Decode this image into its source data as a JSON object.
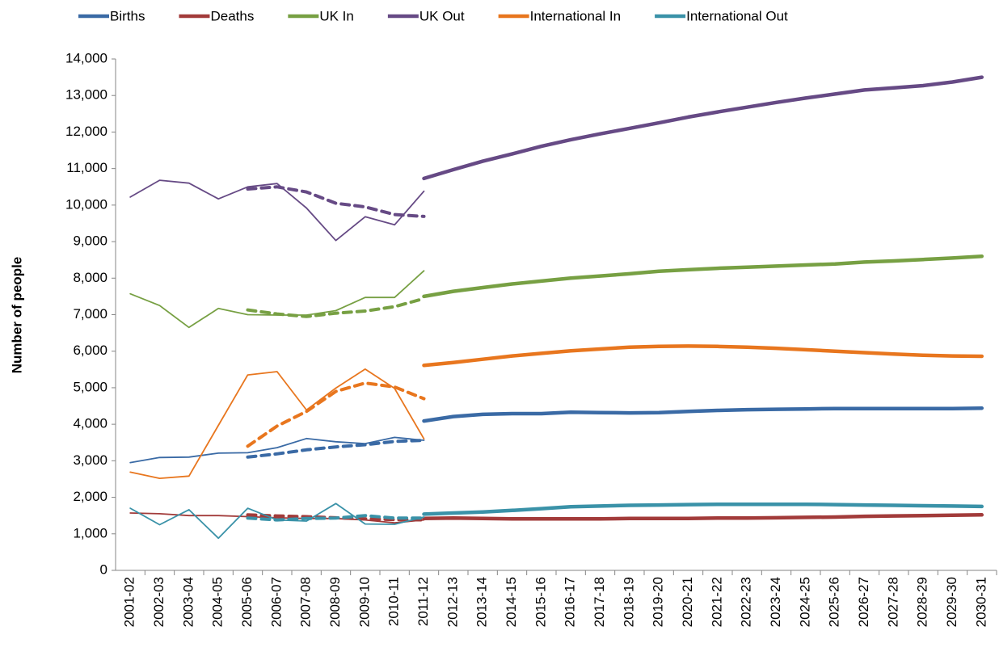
{
  "chart_data": {
    "type": "line",
    "y_label": "Number of people",
    "categories": [
      "2001-02",
      "2002-03",
      "2003-04",
      "2004-05",
      "2005-06",
      "2006-07",
      "2007-08",
      "2008-09",
      "2009-10",
      "2010-11",
      "2011-12",
      "2012-13",
      "2013-14",
      "2014-15",
      "2015-16",
      "2016-17",
      "2017-18",
      "2018-19",
      "2019-20",
      "2020-21",
      "2021-22",
      "2022-23",
      "2023-24",
      "2024-25",
      "2025-26",
      "2026-27",
      "2027-28",
      "2028-29",
      "2029-30",
      "2030-31"
    ],
    "ylim": [
      0,
      14000
    ],
    "yticks": [
      0,
      {
        "value": 1000,
        "label": "1,000"
      },
      {
        "value": 2000,
        "label": "2,000"
      },
      {
        "value": 3000,
        "label": "3,000"
      },
      {
        "value": 4000,
        "label": "4,000"
      },
      {
        "value": 5000,
        "label": "5,000"
      },
      {
        "value": 6000,
        "label": "6,000"
      },
      {
        "value": 7000,
        "label": "7,000"
      },
      {
        "value": 8000,
        "label": "8,000"
      },
      {
        "value": 9000,
        "label": "9,000"
      },
      {
        "value": 10000,
        "label": "10,000"
      },
      {
        "value": 11000,
        "label": "11,000"
      },
      {
        "value": 12000,
        "label": "12,000"
      },
      {
        "value": 13000,
        "label": "13,000"
      },
      {
        "value": 14000,
        "label": "14,000"
      }
    ],
    "grid": false,
    "legend": "top",
    "series": [
      {
        "name": "Births",
        "color": "#3a6aa5",
        "values": [
          2950,
          3090,
          3100,
          3210,
          3220,
          3360,
          3610,
          3520,
          3470,
          3640,
          3560,
          null,
          null,
          null,
          null,
          null,
          null,
          null,
          null,
          null,
          null,
          null,
          null,
          null,
          null,
          null,
          null,
          null,
          null,
          null
        ],
        "trend_values": [
          null,
          null,
          null,
          null,
          3100,
          3190,
          3300,
          3380,
          3440,
          3530,
          3560,
          null,
          null,
          null,
          null,
          null,
          null,
          null,
          null,
          null,
          null,
          null,
          null,
          null,
          null,
          null,
          null,
          null,
          null,
          null
        ],
        "projection_values": [
          null,
          null,
          null,
          null,
          null,
          null,
          null,
          null,
          null,
          null,
          4090,
          4210,
          4270,
          4290,
          4290,
          4330,
          4320,
          4310,
          4320,
          4350,
          4380,
          4400,
          4410,
          4420,
          4430,
          4430,
          4430,
          4430,
          4430,
          4440
        ]
      },
      {
        "name": "Deaths",
        "color": "#a23b3a",
        "values": [
          1570,
          1550,
          1500,
          1500,
          1470,
          1440,
          1420,
          1420,
          1380,
          1300,
          1380,
          null,
          null,
          null,
          null,
          null,
          null,
          null,
          null,
          null,
          null,
          null,
          null,
          null,
          null,
          null,
          null,
          null,
          null,
          null
        ],
        "trend_values": [
          null,
          null,
          null,
          null,
          1520,
          1490,
          1470,
          1440,
          1410,
          1390,
          1380,
          null,
          null,
          null,
          null,
          null,
          null,
          null,
          null,
          null,
          null,
          null,
          null,
          null,
          null,
          null,
          null,
          null,
          null,
          null
        ],
        "projection_values": [
          null,
          null,
          null,
          null,
          null,
          null,
          null,
          null,
          null,
          null,
          1420,
          1430,
          1420,
          1410,
          1410,
          1410,
          1410,
          1420,
          1420,
          1420,
          1430,
          1430,
          1440,
          1450,
          1460,
          1480,
          1490,
          1500,
          1510,
          1520
        ]
      },
      {
        "name": "UK In",
        "color": "#77a043",
        "values": [
          7570,
          7250,
          6650,
          7170,
          7000,
          6990,
          6990,
          7110,
          7470,
          7470,
          8200,
          null,
          null,
          null,
          null,
          null,
          null,
          null,
          null,
          null,
          null,
          null,
          null,
          null,
          null,
          null,
          null,
          null,
          null,
          null
        ],
        "trend_values": [
          null,
          null,
          null,
          null,
          7130,
          7020,
          6950,
          7040,
          7100,
          7220,
          7440,
          null,
          null,
          null,
          null,
          null,
          null,
          null,
          null,
          null,
          null,
          null,
          null,
          null,
          null,
          null,
          null,
          null,
          null,
          null
        ],
        "projection_values": [
          null,
          null,
          null,
          null,
          null,
          null,
          null,
          null,
          null,
          null,
          7500,
          7640,
          7740,
          7840,
          7920,
          8000,
          8060,
          8120,
          8190,
          8230,
          8270,
          8300,
          8330,
          8360,
          8390,
          8440,
          8470,
          8510,
          8550,
          8600
        ]
      },
      {
        "name": "UK Out",
        "color": "#664a85",
        "values": [
          10220,
          10680,
          10600,
          10170,
          10500,
          10590,
          9920,
          9030,
          9680,
          9460,
          10380,
          null,
          null,
          null,
          null,
          null,
          null,
          null,
          null,
          null,
          null,
          null,
          null,
          null,
          null,
          null,
          null,
          null,
          null,
          null
        ],
        "trend_values": [
          null,
          null,
          null,
          null,
          10440,
          10500,
          10360,
          10050,
          9950,
          9740,
          9690,
          null,
          null,
          null,
          null,
          null,
          null,
          null,
          null,
          null,
          null,
          null,
          null,
          null,
          null,
          null,
          null,
          null,
          null,
          null
        ],
        "projection_values": [
          null,
          null,
          null,
          null,
          null,
          null,
          null,
          null,
          null,
          null,
          10730,
          10970,
          11200,
          11400,
          11610,
          11790,
          11950,
          12100,
          12250,
          12410,
          12550,
          12680,
          12810,
          12930,
          13040,
          13150,
          13210,
          13270,
          13370,
          13500
        ]
      },
      {
        "name": "International In",
        "color": "#e8761e",
        "values": [
          2690,
          2520,
          2580,
          3970,
          5350,
          5440,
          4390,
          4990,
          5510,
          4980,
          3600,
          null,
          null,
          null,
          null,
          null,
          null,
          null,
          null,
          null,
          null,
          null,
          null,
          null,
          null,
          null,
          null,
          null,
          null,
          null
        ],
        "trend_values": [
          null,
          null,
          null,
          null,
          3400,
          3950,
          4350,
          4900,
          5130,
          5020,
          4700,
          null,
          null,
          null,
          null,
          null,
          null,
          null,
          null,
          null,
          null,
          null,
          null,
          null,
          null,
          null,
          null,
          null,
          null,
          null
        ],
        "projection_values": [
          null,
          null,
          null,
          null,
          null,
          null,
          null,
          null,
          null,
          null,
          5610,
          5690,
          5780,
          5870,
          5940,
          6010,
          6060,
          6110,
          6130,
          6140,
          6130,
          6110,
          6080,
          6040,
          6000,
          5960,
          5920,
          5890,
          5870,
          5860
        ]
      },
      {
        "name": "International Out",
        "color": "#3a92a8",
        "values": [
          1700,
          1250,
          1660,
          880,
          1700,
          1380,
          1350,
          1830,
          1270,
          1260,
          1460,
          null,
          null,
          null,
          null,
          null,
          null,
          null,
          null,
          null,
          null,
          null,
          null,
          null,
          null,
          null,
          null,
          null,
          null,
          null
        ],
        "trend_values": [
          null,
          null,
          null,
          null,
          1430,
          1380,
          1420,
          1430,
          1500,
          1430,
          1430,
          null,
          null,
          null,
          null,
          null,
          null,
          null,
          null,
          null,
          null,
          null,
          null,
          null,
          null,
          null,
          null,
          null,
          null,
          null
        ],
        "projection_values": [
          null,
          null,
          null,
          null,
          null,
          null,
          null,
          null,
          null,
          null,
          1540,
          1570,
          1600,
          1640,
          1690,
          1740,
          1760,
          1780,
          1790,
          1800,
          1810,
          1810,
          1810,
          1810,
          1800,
          1790,
          1780,
          1770,
          1760,
          1750
        ]
      }
    ]
  }
}
